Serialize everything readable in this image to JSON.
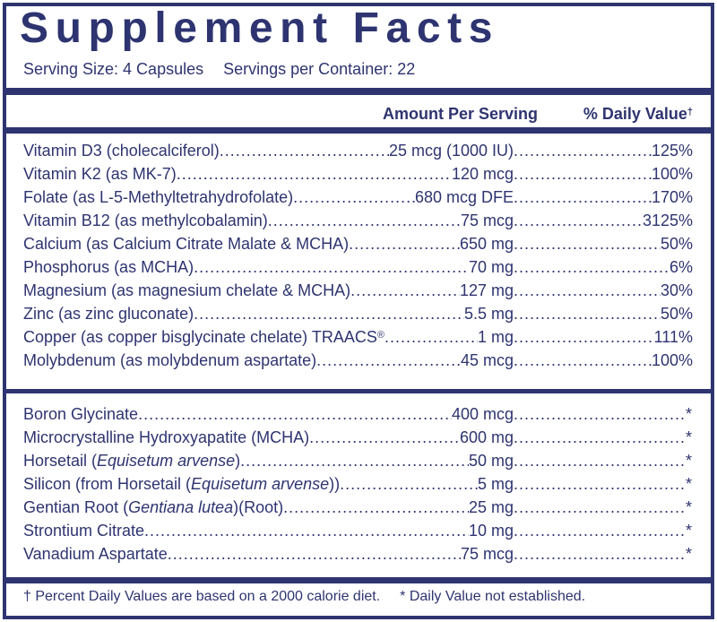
{
  "title": "Supplement Facts",
  "serving_size": "Serving Size: 4 Capsules",
  "servings_per_container": "Servings per Container: 22",
  "header": {
    "amount": "Amount Per Serving",
    "daily_value": "% Daily Value",
    "daily_value_mark": "†"
  },
  "vitamins_minerals": [
    {
      "name": "Vitamin D3 (cholecalciferol)",
      "amount": "25 mcg (1000 IU)",
      "dv": "125%"
    },
    {
      "name": "Vitamin K2 (as MK-7)",
      "amount": "120 mcg",
      "dv": "100%"
    },
    {
      "name": "Folate (as L-5-Methyltetrahydrofolate)",
      "amount": "680 mcg DFE",
      "dv": "170%"
    },
    {
      "name": "Vitamin B12 (as methylcobalamin)",
      "amount": "75 mcg",
      "dv": "3125%"
    },
    {
      "name": "Calcium (as Calcium Citrate Malate & MCHA)",
      "amount": "650 mg",
      "dv": "50%"
    },
    {
      "name": "Phosphorus (as MCHA)",
      "amount": "70 mg",
      "dv": "6%"
    },
    {
      "name": "Magnesium (as magnesium chelate & MCHA)",
      "amount": "127 mg",
      "dv": "30%"
    },
    {
      "name": "Zinc (as zinc gluconate)",
      "amount": "5.5 mg",
      "dv": "50%"
    },
    {
      "name": "Copper (as copper bisglycinate chelate) TRAACS",
      "name_sup": "®",
      "amount": "1 mg",
      "dv": "111%"
    },
    {
      "name": "Molybdenum (as molybdenum aspartate)",
      "amount": "45 mcg",
      "dv": "100%"
    }
  ],
  "other_ingredients": [
    {
      "name": "Boron Glycinate",
      "amount": "400 mcg",
      "dv": "*"
    },
    {
      "name": "Microcrystalline Hydroxyapatite (MCHA)",
      "amount": "600 mg",
      "dv": "*"
    },
    {
      "name_pre": "Horsetail (",
      "name_italic": "Equisetum arvense",
      "name_post": ")",
      "amount": "50 mg",
      "dv": "*"
    },
    {
      "name_pre": "Silicon (from Horsetail (",
      "name_italic": "Equisetum arvense",
      "name_post": "))",
      "amount": "5 mg",
      "dv": "*"
    },
    {
      "name_pre": "Gentian Root (",
      "name_italic": "Gentiana lutea",
      "name_post": ")(Root)",
      "amount": "25 mg",
      "dv": "*"
    },
    {
      "name": "Strontium Citrate",
      "amount": "10 mg",
      "dv": "*"
    },
    {
      "name": "Vanadium Aspartate",
      "amount": "75 mcg",
      "dv": "*"
    }
  ],
  "footer": {
    "daily_values_note": "† Percent Daily Values are based on a 2000 calorie diet.",
    "not_established_note": "* Daily Value not established."
  }
}
